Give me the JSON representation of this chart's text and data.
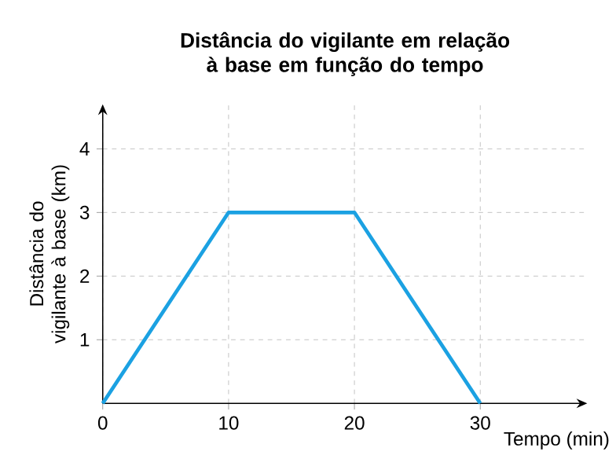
{
  "chart_data": {
    "type": "line",
    "title": "Distância do vigilante em relação à base em função do tempo",
    "xlabel": "Tempo (min)",
    "ylabel": "Distância do vigilante à base (km)",
    "series": [
      {
        "color": "#1ba1e2",
        "x": [
          0,
          10,
          20,
          30
        ],
        "values": [
          0,
          3,
          3,
          0
        ]
      }
    ],
    "xlim": [
      0,
      38.5
    ],
    "ylim": [
      0,
      4.7
    ],
    "xticks": [
      0,
      10,
      20,
      30
    ],
    "yticks": [
      1,
      2,
      3,
      4
    ],
    "grid": true,
    "line_style": "solid"
  }
}
